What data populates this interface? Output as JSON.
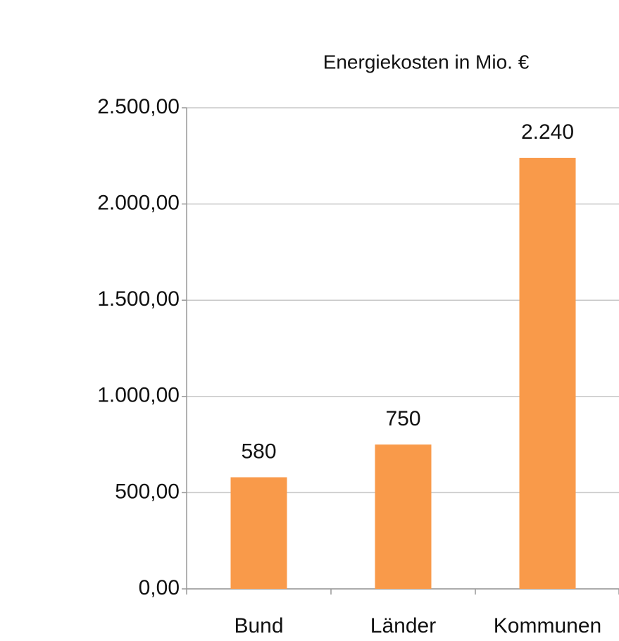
{
  "chart_data": {
    "type": "bar",
    "title": "Energiekosten in Mio. €",
    "categories": [
      "Bund",
      "Länder",
      "Kommunen"
    ],
    "values": [
      580,
      750,
      2240
    ],
    "value_labels": [
      "580",
      "750",
      "2.240"
    ],
    "color": "#f99a4a",
    "ylim": [
      0,
      2500
    ],
    "yticks": [
      {
        "value": 0,
        "label": "0,00"
      },
      {
        "value": 500,
        "label": "500,00"
      },
      {
        "value": 1000,
        "label": "1.000,00"
      },
      {
        "value": 1500,
        "label": "1.500,00"
      },
      {
        "value": 2000,
        "label": "2.000,00"
      },
      {
        "value": 2500,
        "label": "2.500,00"
      }
    ],
    "grid": true
  }
}
